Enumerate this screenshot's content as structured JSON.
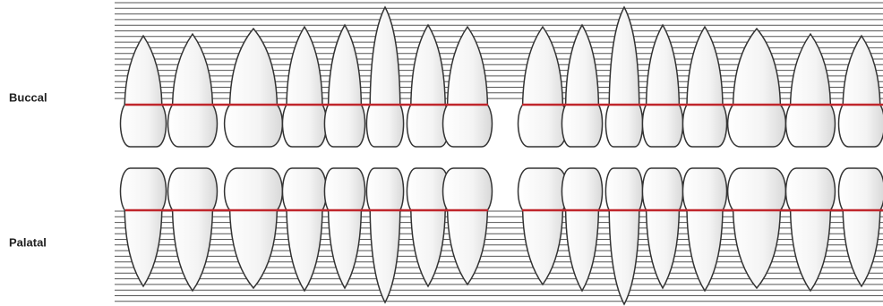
{
  "labels": {
    "buccal": "Buccal",
    "palatal": "Palatal"
  }
}
